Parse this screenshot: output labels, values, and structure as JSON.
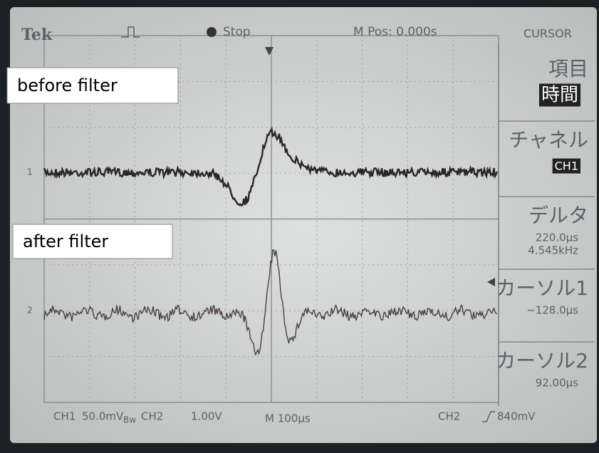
{
  "header": {
    "brand": "Tek",
    "state": "Stop",
    "m_pos": "M Pos: 0.000s",
    "menu_title": "CURSOR"
  },
  "menu": [
    {
      "label": "項目",
      "values": [
        "時間"
      ]
    },
    {
      "label": "チャネル",
      "values": [
        "CH1"
      ]
    },
    {
      "label": "デルタ",
      "values": [
        "220.0μs",
        "4.545kHz"
      ]
    },
    {
      "label": "カーソル1",
      "values": [
        "−128.0μs"
      ]
    },
    {
      "label": "カーソル2",
      "values": [
        "92.00μs"
      ]
    }
  ],
  "footer": {
    "ch1": "CH1",
    "ch1_scale": "50.0mV",
    "bw": "Bw",
    "ch2": "CH2",
    "ch2_scale": "1.00V",
    "time": "M 100μs",
    "trig_ch": "CH2",
    "trig_level": "840mV"
  },
  "annotations": [
    "before filter",
    "after filter"
  ],
  "markers": [
    "1",
    "2"
  ]
}
